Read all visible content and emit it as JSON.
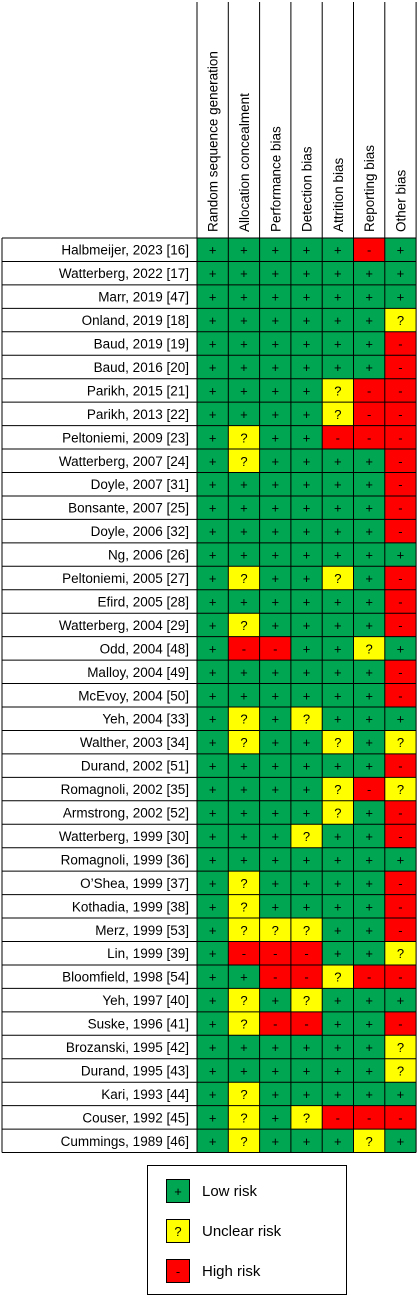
{
  "chart_data": {
    "type": "table",
    "columns": [
      "Random sequence generation",
      "Allocation concealment",
      "Performance bias",
      "Detection bias",
      "Attrition bias",
      "Reporting bias",
      "Other bias"
    ],
    "studies": [
      "Halbmeijer, 2023 [16]",
      "Watterberg, 2022 [17]",
      "Marr, 2019 [47]",
      "Onland, 2019 [18]",
      "Baud, 2019 [19]",
      "Baud, 2016 [20]",
      "Parikh, 2015 [21]",
      "Parikh, 2013 [22]",
      "Peltoniemi, 2009 [23]",
      "Watterberg, 2007 [24]",
      "Doyle, 2007 [31]",
      "Bonsante, 2007 [25]",
      "Doyle, 2006 [32]",
      "Ng, 2006 [26]",
      "Peltoniemi, 2005 [27]",
      "Efird, 2005 [28]",
      "Watterberg, 2004 [29]",
      "Odd, 2004 [48]",
      "Malloy, 2004 [49]",
      "McEvoy, 2004 [50]",
      "Yeh, 2004 [33]",
      "Walther, 2003 [34]",
      "Durand, 2002 [51]",
      "Romagnoli, 2002 [35]",
      "Armstrong, 2002 [52]",
      "Watterberg, 1999 [30]",
      "Romagnoli, 1999 [36]",
      "O’Shea, 1999 [37]",
      "Kothadia, 1999 [38]",
      "Merz, 1999 [53]",
      "Lin, 1999 [39]",
      "Bloomfield, 1998 [54]",
      "Yeh, 1997 [40]",
      "Suske, 1996 [41]",
      "Brozanski, 1995 [42]",
      "Durand, 1995 [43]",
      "Kari, 1993 [44]",
      "Couser, 1992 [45]",
      "Cummings, 1989 [46]"
    ],
    "ratings": [
      [
        "L",
        "L",
        "L",
        "L",
        "L",
        "H",
        "L"
      ],
      [
        "L",
        "L",
        "L",
        "L",
        "L",
        "L",
        "L"
      ],
      [
        "L",
        "L",
        "L",
        "L",
        "L",
        "L",
        "L"
      ],
      [
        "L",
        "L",
        "L",
        "L",
        "L",
        "L",
        "U"
      ],
      [
        "L",
        "L",
        "L",
        "L",
        "L",
        "L",
        "H"
      ],
      [
        "L",
        "L",
        "L",
        "L",
        "L",
        "L",
        "H"
      ],
      [
        "L",
        "L",
        "L",
        "L",
        "U",
        "H",
        "H"
      ],
      [
        "L",
        "L",
        "L",
        "L",
        "U",
        "H",
        "H"
      ],
      [
        "L",
        "U",
        "L",
        "L",
        "H",
        "H",
        "H"
      ],
      [
        "L",
        "U",
        "L",
        "L",
        "L",
        "L",
        "H"
      ],
      [
        "L",
        "L",
        "L",
        "L",
        "L",
        "L",
        "H"
      ],
      [
        "L",
        "L",
        "L",
        "L",
        "L",
        "L",
        "H"
      ],
      [
        "L",
        "L",
        "L",
        "L",
        "L",
        "L",
        "H"
      ],
      [
        "L",
        "L",
        "L",
        "L",
        "L",
        "L",
        "L"
      ],
      [
        "L",
        "U",
        "L",
        "L",
        "U",
        "L",
        "H"
      ],
      [
        "L",
        "L",
        "L",
        "L",
        "L",
        "L",
        "H"
      ],
      [
        "L",
        "U",
        "L",
        "L",
        "L",
        "L",
        "H"
      ],
      [
        "L",
        "H",
        "H",
        "L",
        "L",
        "U",
        "L"
      ],
      [
        "L",
        "L",
        "L",
        "L",
        "L",
        "L",
        "H"
      ],
      [
        "L",
        "L",
        "L",
        "L",
        "L",
        "L",
        "H"
      ],
      [
        "L",
        "U",
        "L",
        "U",
        "L",
        "L",
        "L"
      ],
      [
        "L",
        "U",
        "L",
        "L",
        "U",
        "L",
        "U"
      ],
      [
        "L",
        "L",
        "L",
        "L",
        "L",
        "L",
        "H"
      ],
      [
        "L",
        "L",
        "L",
        "L",
        "U",
        "H",
        "U"
      ],
      [
        "L",
        "L",
        "L",
        "L",
        "U",
        "L",
        "H"
      ],
      [
        "L",
        "L",
        "L",
        "U",
        "L",
        "L",
        "H"
      ],
      [
        "L",
        "L",
        "L",
        "L",
        "L",
        "L",
        "L"
      ],
      [
        "L",
        "U",
        "L",
        "L",
        "L",
        "L",
        "H"
      ],
      [
        "L",
        "U",
        "L",
        "L",
        "L",
        "L",
        "H"
      ],
      [
        "L",
        "U",
        "U",
        "U",
        "L",
        "L",
        "H"
      ],
      [
        "L",
        "H",
        "H",
        "H",
        "L",
        "L",
        "U"
      ],
      [
        "L",
        "L",
        "H",
        "H",
        "U",
        "H",
        "H"
      ],
      [
        "L",
        "U",
        "L",
        "U",
        "L",
        "L",
        "L"
      ],
      [
        "L",
        "U",
        "H",
        "H",
        "L",
        "L",
        "H"
      ],
      [
        "L",
        "L",
        "L",
        "L",
        "L",
        "L",
        "U"
      ],
      [
        "L",
        "L",
        "L",
        "L",
        "L",
        "L",
        "U"
      ],
      [
        "L",
        "U",
        "L",
        "L",
        "L",
        "L",
        "L"
      ],
      [
        "L",
        "U",
        "L",
        "U",
        "H",
        "H",
        "H"
      ],
      [
        "L",
        "U",
        "L",
        "L",
        "L",
        "U",
        "L"
      ]
    ],
    "symbols": {
      "L": "+",
      "U": "?",
      "H": "-"
    },
    "colors": {
      "L": "#00a651",
      "U": "#ffff00",
      "H": "#ff0000"
    }
  },
  "legend": {
    "low": {
      "symbol": "+",
      "label": "Low risk"
    },
    "unclear": {
      "symbol": "?",
      "label": "Unclear risk"
    },
    "high": {
      "symbol": "-",
      "label": "High risk"
    }
  }
}
